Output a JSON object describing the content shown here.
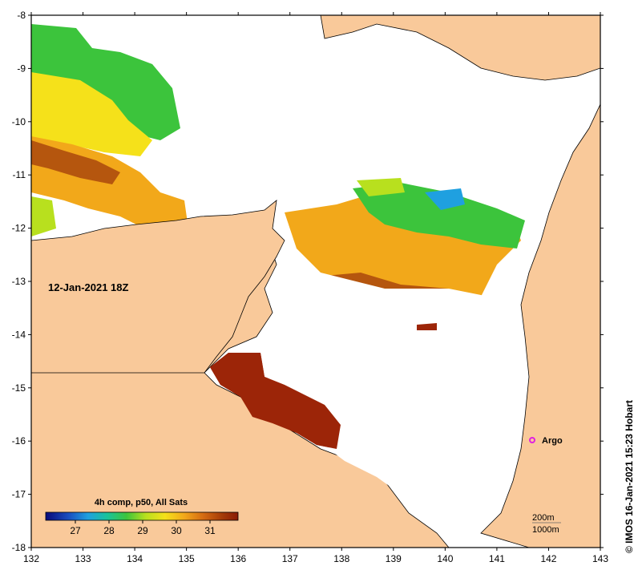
{
  "map": {
    "date_label": "12-Jan-2021 18Z",
    "credit": "© IMOS 16-Jan-2021 15:23 Hobart",
    "lon_ticks": [
      "132",
      "133",
      "134",
      "135",
      "136",
      "137",
      "138",
      "139",
      "140",
      "141",
      "142",
      "143"
    ],
    "lat_ticks": [
      "-8",
      "-9",
      "-10",
      "-11",
      "-12",
      "-13",
      "-14",
      "-15",
      "-16",
      "-17",
      "-18"
    ],
    "colorbar": {
      "title": "4h comp, p50, All Sats",
      "ticks": [
        "27",
        "28",
        "29",
        "30",
        "31"
      ],
      "colors": [
        "#0a0a7a",
        "#1a4fc0",
        "#1fa0e0",
        "#19c39a",
        "#3cc43c",
        "#b8e01e",
        "#f5e11a",
        "#f2a81a",
        "#d46a12",
        "#a33a08",
        "#8a1a05"
      ]
    },
    "contours": {
      "c1": "200m",
      "c2": "1000m"
    },
    "argo": {
      "label": "Argo",
      "color": "#e020e0"
    },
    "colors": {
      "land": "#f9c99a",
      "ocean_nodata": "#ffffff",
      "coast": "#000000"
    }
  }
}
